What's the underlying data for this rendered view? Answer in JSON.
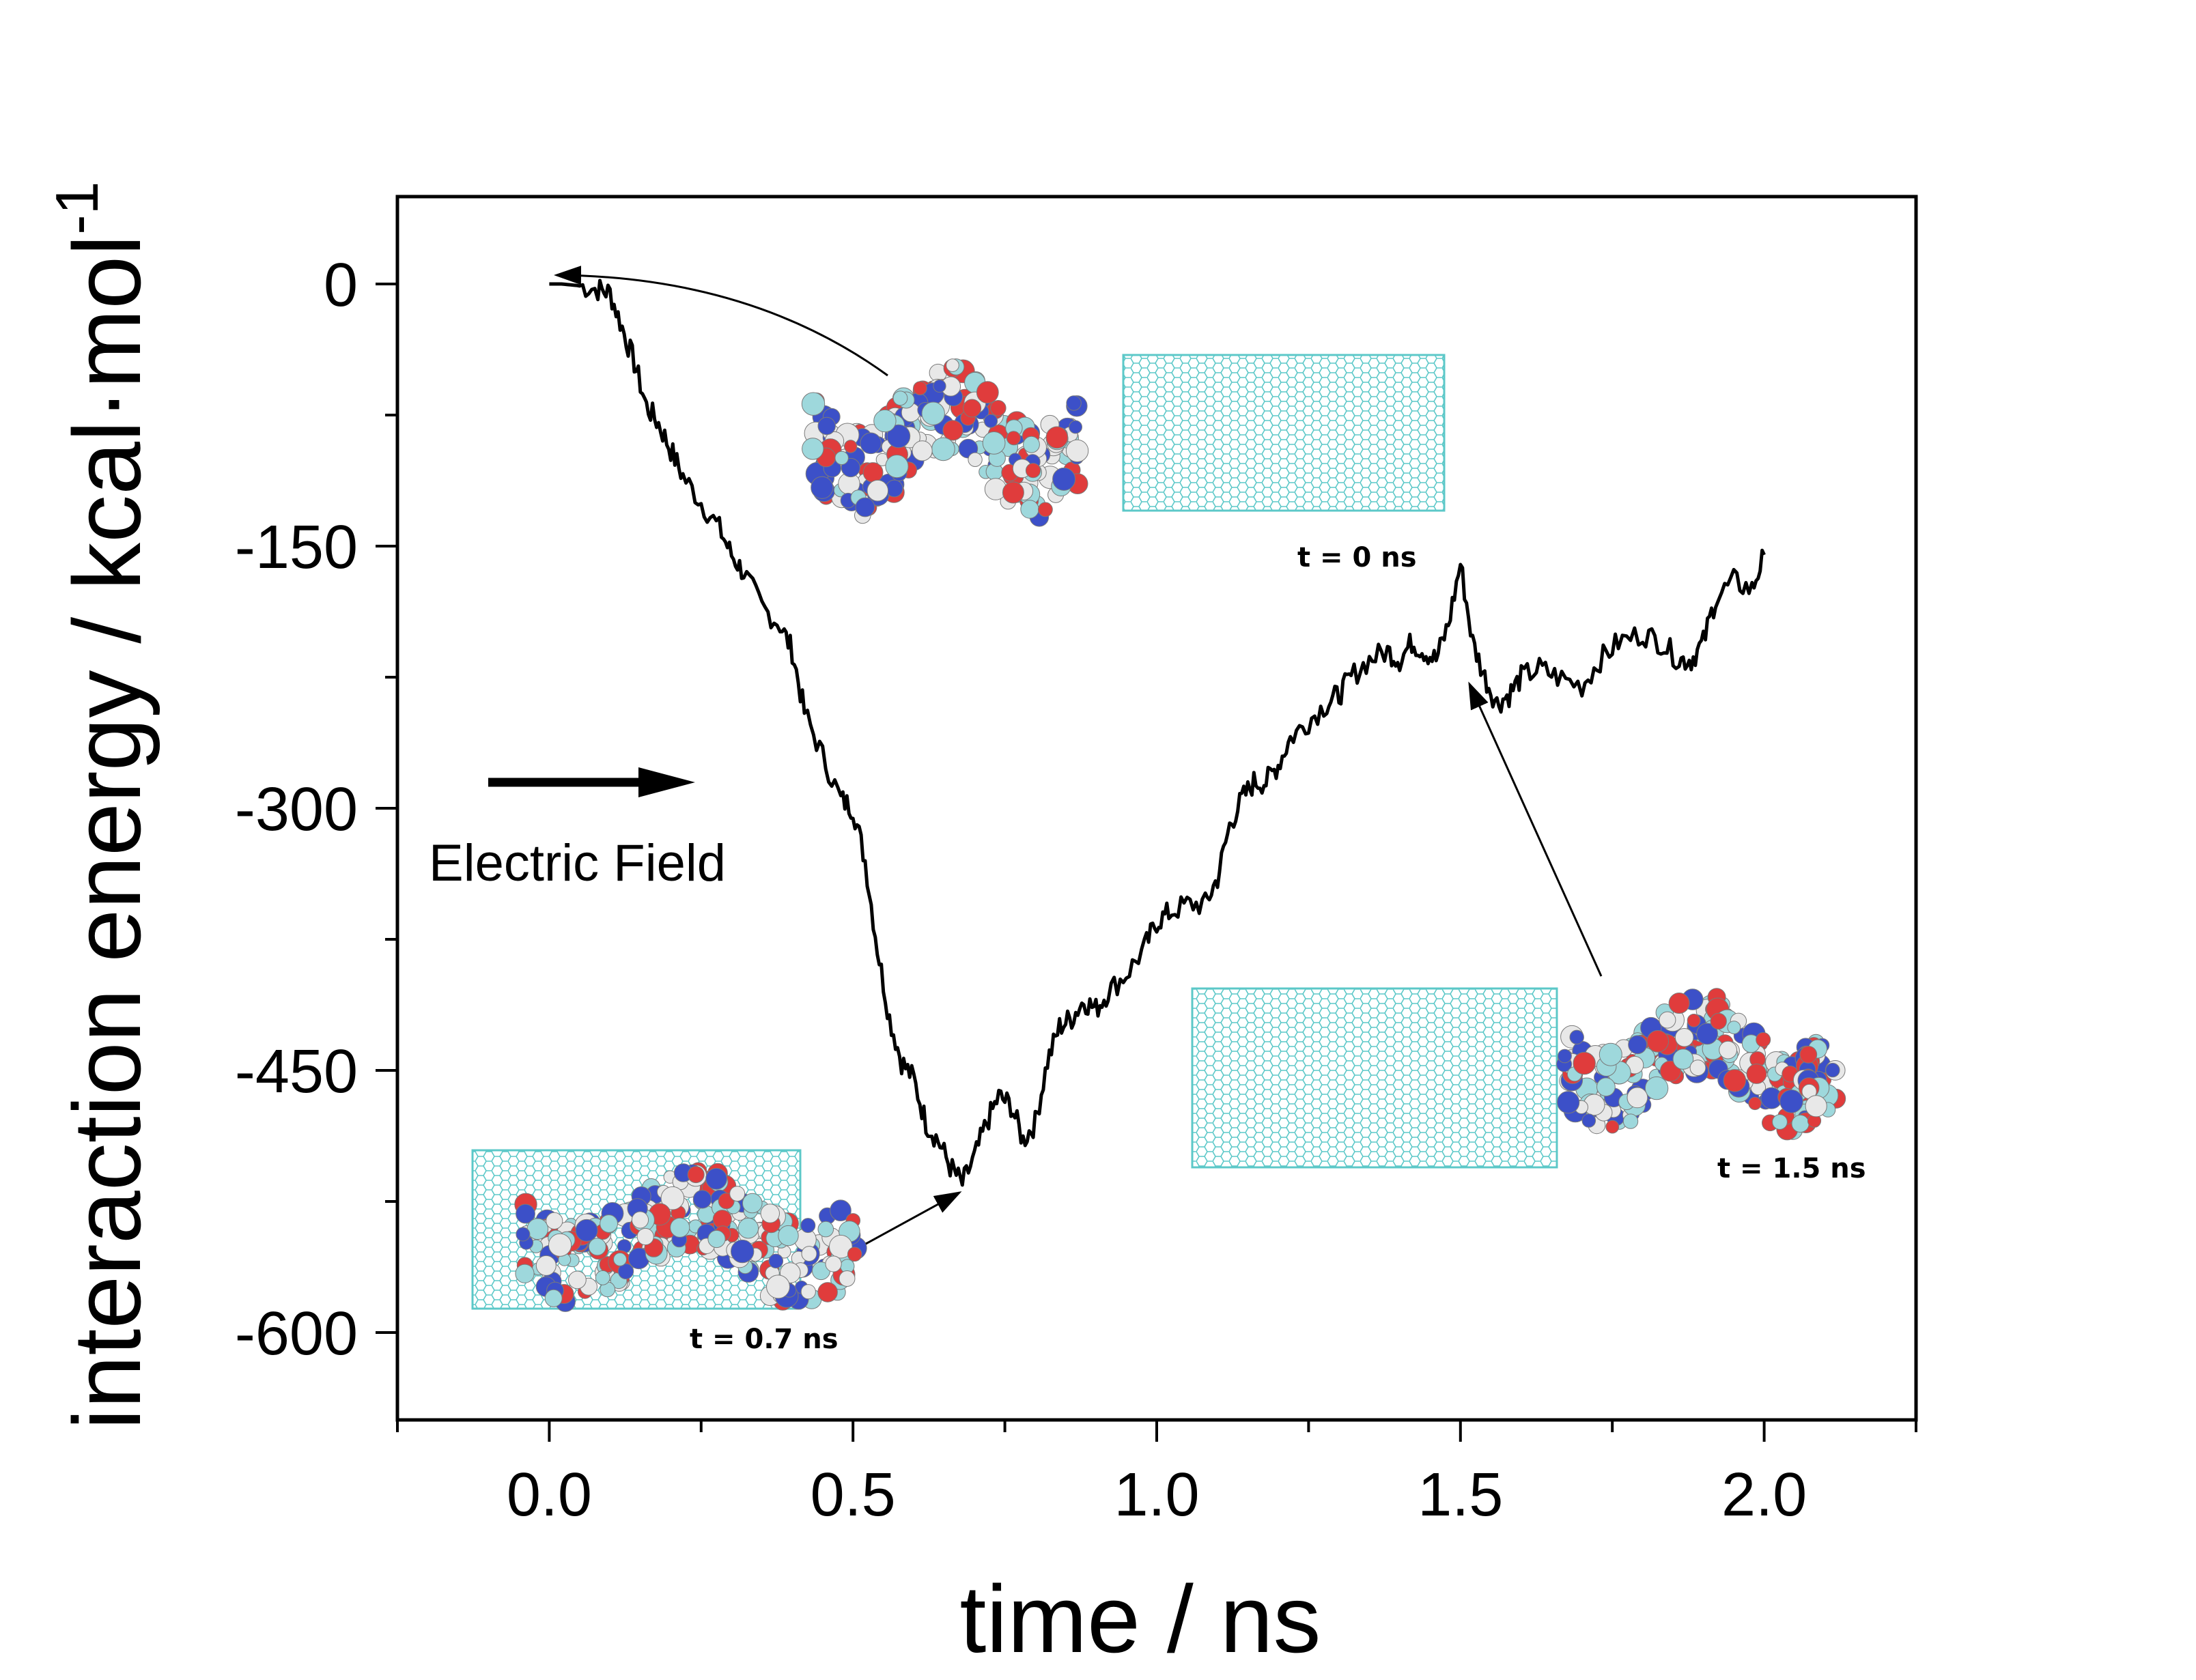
{
  "chart_data": {
    "type": "line",
    "title": "",
    "xlabel": "time / ns",
    "ylabel_main": "interaction energy / kcal·mol",
    "ylabel_superscript": "-1",
    "xlim": [
      -0.25,
      2.25
    ],
    "ylim": [
      -650,
      50
    ],
    "xticks": [
      0.0,
      0.5,
      1.0,
      1.5,
      2.0
    ],
    "xtick_labels": [
      "0.0",
      "0.5",
      "1.0",
      "1.5",
      "2.0"
    ],
    "yticks": [
      0,
      -150,
      -300,
      -450,
      -600
    ],
    "ytick_labels": [
      "0",
      "-150",
      "-300",
      "-450",
      "-600"
    ],
    "grid": false,
    "legend": "none",
    "line_color": "#000000",
    "nanotube_color": "#5cc8c8",
    "atom_colors": [
      "#e03c3c",
      "#9ed8dc",
      "#e8e8e8",
      "#3c50c8"
    ],
    "series": [
      {
        "x": [
          0.0,
          0.02,
          0.05,
          0.08,
          0.1,
          0.12,
          0.14,
          0.16,
          0.18,
          0.2,
          0.22,
          0.25,
          0.28,
          0.3,
          0.32,
          0.35,
          0.38,
          0.4,
          0.42,
          0.45,
          0.48,
          0.5,
          0.52,
          0.54,
          0.56,
          0.58,
          0.6,
          0.62,
          0.64,
          0.66,
          0.68,
          0.7,
          0.72,
          0.74,
          0.76,
          0.78,
          0.8,
          0.82,
          0.84,
          0.86,
          0.88,
          0.9,
          0.92,
          0.95,
          0.98,
          1.0,
          1.02,
          1.05,
          1.08,
          1.1,
          1.12,
          1.14,
          1.16,
          1.18,
          1.2,
          1.22,
          1.25,
          1.28,
          1.3,
          1.32,
          1.35,
          1.38,
          1.4,
          1.42,
          1.44,
          1.46,
          1.48,
          1.5,
          1.52,
          1.54,
          1.56,
          1.58,
          1.6,
          1.63,
          1.66,
          1.7,
          1.73,
          1.76,
          1.8,
          1.83,
          1.86,
          1.88,
          1.9,
          1.92,
          1.95,
          1.98,
          2.0
        ],
        "y": [
          0,
          0,
          -1,
          -3,
          -5,
          -25,
          -45,
          -70,
          -80,
          -95,
          -110,
          -125,
          -140,
          -155,
          -165,
          -185,
          -195,
          -210,
          -245,
          -270,
          -295,
          -300,
          -330,
          -380,
          -420,
          -445,
          -455,
          -480,
          -490,
          -505,
          -515,
          -500,
          -480,
          -465,
          -470,
          -490,
          -480,
          -445,
          -425,
          -420,
          -410,
          -415,
          -405,
          -395,
          -380,
          -365,
          -360,
          -355,
          -355,
          -340,
          -310,
          -295,
          -285,
          -285,
          -275,
          -260,
          -250,
          -240,
          -235,
          -225,
          -215,
          -210,
          -215,
          -205,
          -210,
          -215,
          -195,
          -160,
          -205,
          -225,
          -240,
          -235,
          -225,
          -220,
          -225,
          -230,
          -215,
          -205,
          -200,
          -205,
          -215,
          -215,
          -205,
          -180,
          -170,
          -175,
          -155
        ]
      }
    ],
    "annotations": [
      {
        "text": "Electric Field",
        "type": "arrow-label",
        "direction": "right"
      },
      {
        "text": "t = 0 ns",
        "time": 0.0,
        "energy": 0
      },
      {
        "text": "t = 0.7 ns",
        "time": 0.68,
        "energy": -525
      },
      {
        "text": "t = 1.5 ns",
        "time": 1.5,
        "energy": -230
      }
    ]
  }
}
